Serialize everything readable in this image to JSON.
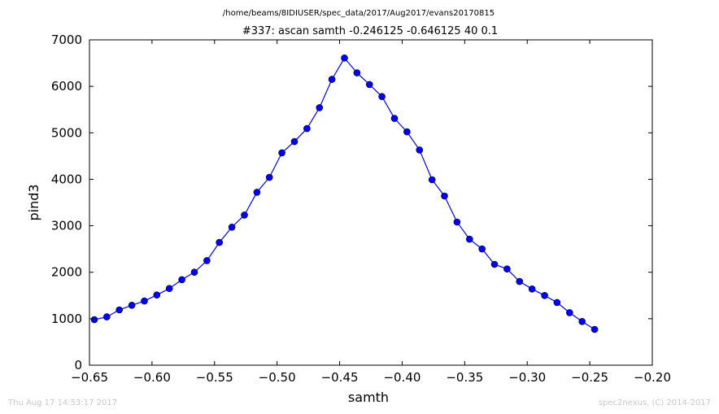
{
  "header": {
    "file_path": "/home/beams/8IDIUSER/spec_data/2017/Aug2017/evans20170815",
    "scan_title": "#337: ascan  samth -0.246125 -0.646125  40 0.1"
  },
  "footer": {
    "timestamp": "Thu Aug 17 14:53:17 2017",
    "credit": "spec2nexus, (C) 2014-2017"
  },
  "chart_data": {
    "type": "line",
    "xlabel": "samth",
    "ylabel": "pind3",
    "xlim": [
      -0.65,
      -0.2
    ],
    "ylim": [
      0,
      7000
    ],
    "x_ticks": [
      -0.65,
      -0.6,
      -0.55,
      -0.5,
      -0.45,
      -0.4,
      -0.35,
      -0.3,
      -0.25,
      -0.2
    ],
    "x_tick_labels": [
      "−0.65",
      "−0.60",
      "−0.55",
      "−0.50",
      "−0.45",
      "−0.40",
      "−0.35",
      "−0.30",
      "−0.25",
      "−0.20"
    ],
    "y_ticks": [
      0,
      1000,
      2000,
      3000,
      4000,
      5000,
      6000,
      7000
    ],
    "y_tick_labels": [
      "0",
      "1000",
      "2000",
      "3000",
      "4000",
      "5000",
      "6000",
      "7000"
    ],
    "grid": false,
    "line_color": "#0000ff",
    "marker": "circle",
    "marker_color": "#0000ff",
    "series": [
      {
        "x": [
          -0.646125,
          -0.636125,
          -0.626125,
          -0.616125,
          -0.606125,
          -0.596125,
          -0.586125,
          -0.576125,
          -0.566125,
          -0.556125,
          -0.546125,
          -0.536125,
          -0.526125,
          -0.516125,
          -0.506125,
          -0.496125,
          -0.486125,
          -0.476125,
          -0.466125,
          -0.456125,
          -0.446125,
          -0.436125,
          -0.426125,
          -0.416125,
          -0.406125,
          -0.396125,
          -0.386125,
          -0.376125,
          -0.366125,
          -0.356125,
          -0.346125,
          -0.336125,
          -0.326125,
          -0.316125,
          -0.306125,
          -0.296125,
          -0.286125,
          -0.276125,
          -0.266125,
          -0.256125,
          -0.246125
        ],
        "y": [
          980,
          1040,
          1190,
          1290,
          1380,
          1510,
          1650,
          1840,
          2000,
          2250,
          2640,
          2970,
          3230,
          3720,
          4040,
          4570,
          4810,
          5090,
          5540,
          6150,
          6610,
          6290,
          6040,
          5780,
          5310,
          5020,
          4630,
          3990,
          3640,
          3080,
          2710,
          2500,
          2170,
          2070,
          1800,
          1640,
          1500,
          1350,
          1130,
          940,
          770
        ]
      }
    ]
  }
}
